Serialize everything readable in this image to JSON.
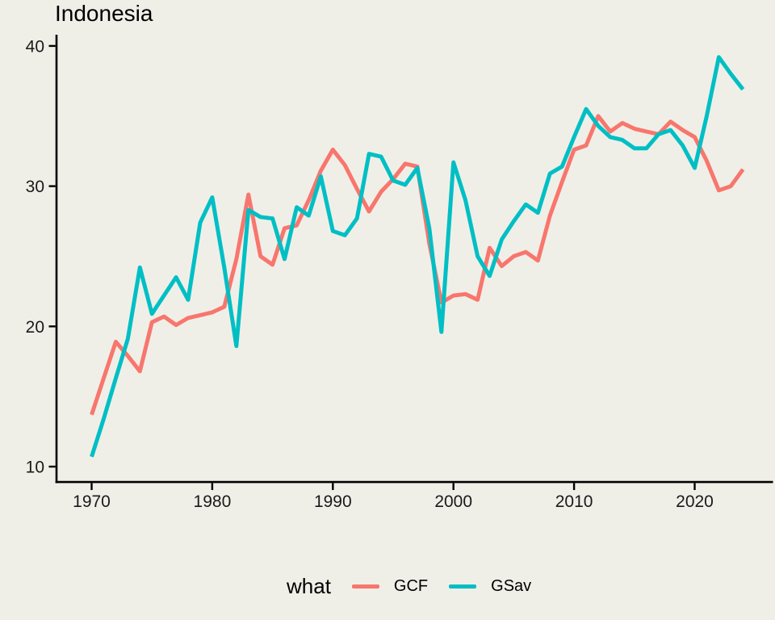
{
  "title": "Indonesia",
  "colors": {
    "background": "#EFEFE8",
    "axis": "#000000",
    "tick_label": "#1A1A1A",
    "gcf": "#F8766D",
    "gsav": "#00BFC4"
  },
  "axes": {
    "x_ticks": [
      1970,
      1980,
      1990,
      2000,
      2010,
      2020
    ],
    "y_ticks": [
      10,
      20,
      30,
      40
    ]
  },
  "legend": {
    "title": "what",
    "items": [
      {
        "label": "GCF",
        "color": "#F8766D"
      },
      {
        "label": "GSav",
        "color": "#00BFC4"
      }
    ]
  },
  "chart_data": {
    "type": "line",
    "title": "Indonesia",
    "xlabel": "",
    "ylabel": "",
    "xlim": [
      1967.1,
      2026.5
    ],
    "ylim": [
      8.9,
      40.9
    ],
    "grid": false,
    "legend_position": "bottom",
    "legend_title": "what",
    "x": [
      1970,
      1971,
      1972,
      1973,
      1974,
      1975,
      1976,
      1977,
      1978,
      1979,
      1980,
      1981,
      1982,
      1983,
      1984,
      1985,
      1986,
      1987,
      1988,
      1989,
      1990,
      1991,
      1992,
      1993,
      1994,
      1995,
      1996,
      1997,
      1998,
      1999,
      2000,
      2001,
      2002,
      2003,
      2004,
      2005,
      2006,
      2007,
      2008,
      2009,
      2010,
      2011,
      2012,
      2013,
      2014,
      2015,
      2016,
      2017,
      2018,
      2019,
      2020,
      2021,
      2022,
      2023,
      2024
    ],
    "series": [
      {
        "name": "GCF",
        "color": "#F8766D",
        "values": [
          13.7,
          16.3,
          18.9,
          17.9,
          16.8,
          20.3,
          20.7,
          20.1,
          20.6,
          20.8,
          21.0,
          21.4,
          24.8,
          29.4,
          25.0,
          24.4,
          27.0,
          27.2,
          29.0,
          31.1,
          32.6,
          31.5,
          29.8,
          28.2,
          29.6,
          30.5,
          31.6,
          31.4,
          25.9,
          21.7,
          22.2,
          22.3,
          21.9,
          25.6,
          24.3,
          25.0,
          25.3,
          24.7,
          27.9,
          30.3,
          32.6,
          32.9,
          35.0,
          33.9,
          34.5,
          34.1,
          33.9,
          33.7,
          34.6,
          34.0,
          33.5,
          31.8,
          29.7,
          30.0,
          31.2
        ]
      },
      {
        "name": "GSav",
        "color": "#00BFC4",
        "values": [
          10.7,
          13.4,
          16.3,
          19.1,
          24.2,
          20.9,
          22.2,
          23.5,
          21.9,
          27.4,
          29.2,
          24.2,
          18.6,
          28.3,
          27.8,
          27.7,
          24.8,
          28.5,
          27.9,
          30.7,
          26.8,
          26.5,
          27.7,
          32.3,
          32.1,
          30.4,
          30.1,
          31.3,
          27.0,
          19.6,
          31.7,
          29.0,
          25.0,
          23.6,
          26.2,
          27.5,
          28.7,
          28.1,
          30.9,
          31.4,
          33.5,
          35.5,
          34.3,
          33.5,
          33.3,
          32.7,
          32.7,
          33.7,
          34.0,
          32.9,
          31.3,
          35.0,
          39.2,
          38.0,
          36.9
        ]
      }
    ]
  }
}
